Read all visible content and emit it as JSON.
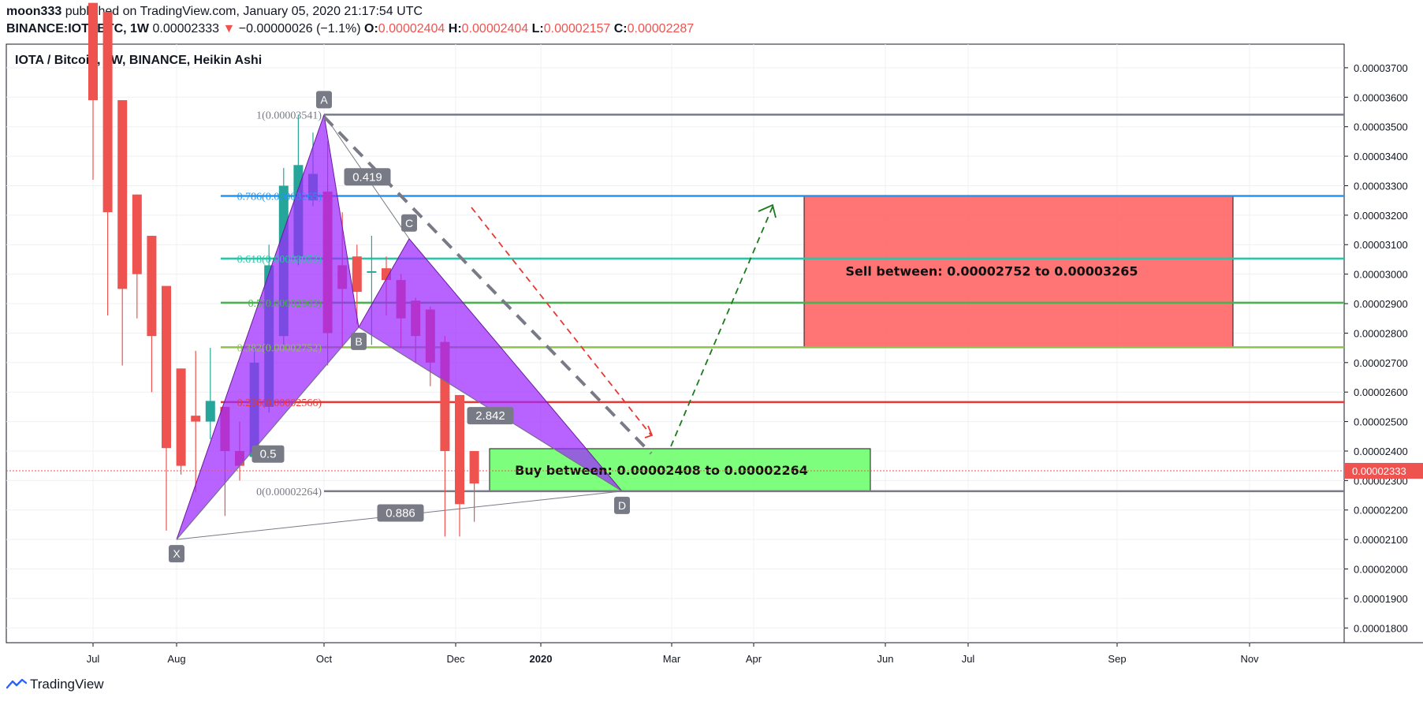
{
  "header": {
    "user": "moon333",
    "published": "published on TradingView.com, January 05, 2020 21:17:54 UTC",
    "symbol": "BINANCE:IOTABTC, 1W",
    "last": "0.00002333",
    "change_arrow": "▼",
    "change": "−0.00000026 (−1.1%)",
    "o_label": "O:",
    "o_value": "0.00002404",
    "h_label": "H:",
    "h_value": "0.00002404",
    "l_label": "L:",
    "l_value": "0.00002157",
    "c_label": "C:",
    "c_value": "0.00002287"
  },
  "footer": {
    "brand": "TradingView",
    "logo_icon": "tradingview-logo-icon"
  },
  "chart_data": {
    "type": "candlestick",
    "title": "IOTA / Bitcoin, 1W, BINANCE, Heikin Ashi",
    "ylim": [
      1.75e-05,
      3.78e-05
    ],
    "y_ticks": [
      "0.00003700",
      "0.00003600",
      "0.00003500",
      "0.00003400",
      "0.00003300",
      "0.00003200",
      "0.00003100",
      "0.00003000",
      "0.00002900",
      "0.00002800",
      "0.00002700",
      "0.00002600",
      "0.00002500",
      "0.00002400",
      "0.00002300",
      "0.00002200",
      "0.00002100",
      "0.00002000",
      "0.00001900",
      "0.00001800"
    ],
    "x_ticks": [
      "Jul",
      "Aug",
      "Oct",
      "Dec",
      "2020",
      "Mar",
      "Apr",
      "Jun",
      "Jul",
      "Sep",
      "Nov"
    ],
    "current_price_label": "0.00002333",
    "current_price": 2.333e-05,
    "colors": {
      "up": "#26a69a",
      "down": "#ef5350",
      "pattern": "#9c27ff",
      "buy_zone": "#66ff66",
      "sell_zone": "#ff6666"
    },
    "candles": [
      {
        "o": 3.92e-05,
        "h": 3.92e-05,
        "l": 3.32e-05,
        "c": 3.59e-05
      },
      {
        "o": 3.89e-05,
        "h": 3.89e-05,
        "l": 2.86e-05,
        "c": 3.21e-05
      },
      {
        "o": 3.59e-05,
        "h": 3.59e-05,
        "l": 2.69e-05,
        "c": 2.95e-05
      },
      {
        "o": 3.27e-05,
        "h": 3.27e-05,
        "l": 2.85e-05,
        "c": 3e-05
      },
      {
        "o": 3.13e-05,
        "h": 3.13e-05,
        "l": 2.6e-05,
        "c": 2.79e-05
      },
      {
        "o": 2.96e-05,
        "h": 2.96e-05,
        "l": 2.13e-05,
        "c": 2.41e-05
      },
      {
        "o": 2.68e-05,
        "h": 2.68e-05,
        "l": 2.32e-05,
        "c": 2.35e-05
      },
      {
        "o": 2.52e-05,
        "h": 2.74e-05,
        "l": 2.26e-05,
        "c": 2.5e-05
      },
      {
        "o": 2.5e-05,
        "h": 2.75e-05,
        "l": 2.44e-05,
        "c": 2.57e-05
      },
      {
        "o": 2.55e-05,
        "h": 2.55e-05,
        "l": 2.18e-05,
        "c": 2.4e-05
      },
      {
        "o": 2.4e-05,
        "h": 2.5e-05,
        "l": 2.3e-05,
        "c": 2.35e-05
      },
      {
        "o": 2.38e-05,
        "h": 2.75e-05,
        "l": 2.4e-05,
        "c": 2.7e-05
      },
      {
        "o": 2.55e-05,
        "h": 3.1e-05,
        "l": 2.53e-05,
        "c": 3.03e-05
      },
      {
        "o": 2.79e-05,
        "h": 3.36e-05,
        "l": 2.76e-05,
        "c": 3.3e-05
      },
      {
        "o": 3.06e-05,
        "h": 3.54e-05,
        "l": 3.03e-05,
        "c": 3.37e-05
      },
      {
        "o": 3.25e-05,
        "h": 3.48e-05,
        "l": 3.23e-05,
        "c": 3.34e-05
      },
      {
        "o": 3.28e-05,
        "h": 3.45e-05,
        "l": 2.69e-05,
        "c": 2.8e-05
      },
      {
        "o": 3.03e-05,
        "h": 3.21e-05,
        "l": 2.75e-05,
        "c": 2.95e-05
      },
      {
        "o": 3.06e-05,
        "h": 3.1e-05,
        "l": 2.83e-05,
        "c": 2.94e-05
      },
      {
        "o": 3.01e-05,
        "h": 3.13e-05,
        "l": 2.76e-05,
        "c": 3.01e-05
      },
      {
        "o": 3.02e-05,
        "h": 3.06e-05,
        "l": 2.86e-05,
        "c": 2.98e-05
      },
      {
        "o": 2.98e-05,
        "h": 3e-05,
        "l": 2.75e-05,
        "c": 2.85e-05
      },
      {
        "o": 2.91e-05,
        "h": 2.92e-05,
        "l": 2.7e-05,
        "c": 2.79e-05
      },
      {
        "o": 2.88e-05,
        "h": 2.89e-05,
        "l": 2.62e-05,
        "c": 2.7e-05
      },
      {
        "o": 2.77e-05,
        "h": 2.79e-05,
        "l": 2.11e-05,
        "c": 2.4e-05
      },
      {
        "o": 2.59e-05,
        "h": 2.59e-05,
        "l": 2.11e-05,
        "c": 2.22e-05
      },
      {
        "o": 2.4e-05,
        "h": 2.4e-05,
        "l": 2.16e-05,
        "c": 2.29e-05
      }
    ],
    "fib_levels": [
      {
        "label": "1(0.00003541)",
        "value": 3.541e-05,
        "color": "#787b86"
      },
      {
        "label": "0.786(0.00003265)",
        "value": 3.265e-05,
        "color": "#2196f3"
      },
      {
        "label": "0.618(0.00003053)",
        "value": 3.053e-05,
        "color": "#26c6a6"
      },
      {
        "label": "0.5(0.00002903)",
        "value": 2.903e-05,
        "color": "#4caf50"
      },
      {
        "label": "0.382(0.00002752)",
        "value": 2.752e-05,
        "color": "#8bc34a"
      },
      {
        "label": "0.236(0.00002566)",
        "value": 2.566e-05,
        "color": "#e53935"
      },
      {
        "label": "0(0.00002264)",
        "value": 2.264e-05,
        "color": "#787b86"
      }
    ],
    "pattern_points": [
      {
        "name": "X",
        "value": 2.1e-05
      },
      {
        "name": "A",
        "value": 3.541e-05
      },
      {
        "name": "B",
        "value": 2.82e-05
      },
      {
        "name": "C",
        "value": 3.12e-05
      },
      {
        "name": "D",
        "value": 2.264e-05
      }
    ],
    "ratios": [
      "0.5",
      "0.419",
      "2.842",
      "0.886"
    ],
    "zones": {
      "buy": {
        "text": "Buy between: 0.00002408 to 0.00002264",
        "top": 2.408e-05,
        "bottom": 2.264e-05
      },
      "sell": {
        "text": "Sell between: 0.00002752 to 0.00003265",
        "top": 3.265e-05,
        "bottom": 2.752e-05
      }
    }
  }
}
